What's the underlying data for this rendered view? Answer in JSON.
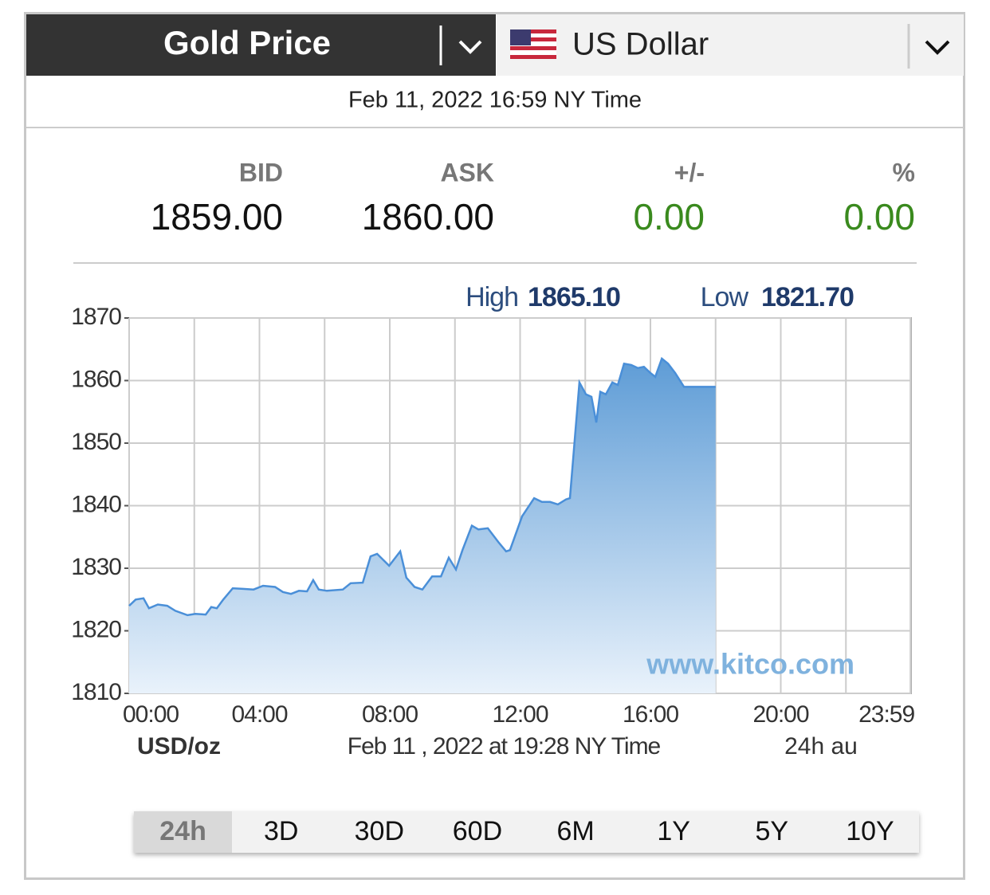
{
  "header": {
    "title": "Gold Price",
    "currency": "US Dollar"
  },
  "timestamp": "Feb 11, 2022 16:59 NY Time",
  "quote": {
    "labels": [
      "BID",
      "ASK",
      "+/-",
      "%"
    ],
    "values": [
      "1859.00",
      "1860.00",
      "0.00",
      "0.00"
    ]
  },
  "chart_data": {
    "type": "area",
    "high_label": "High",
    "high": "1865.10",
    "low_label": "Low",
    "low": "1821.70",
    "unit": "USD/oz",
    "updated": "Feb 11 , 2022 at 19:28 NY Time",
    "range_note": "24h au",
    "watermark": "www.kitco.com",
    "x": [
      0,
      0.2,
      0.44,
      0.61,
      0.88,
      1.17,
      1.42,
      1.79,
      2.03,
      2.35,
      2.52,
      2.69,
      2.89,
      3.18,
      3.5,
      3.82,
      4.11,
      4.48,
      4.72,
      4.97,
      5.21,
      5.46,
      5.65,
      5.82,
      6.07,
      6.56,
      6.8,
      7.17,
      7.41,
      7.61,
      7.98,
      8.32,
      8.51,
      8.76,
      9.0,
      9.3,
      9.57,
      9.81,
      10.03,
      10.23,
      10.52,
      10.72,
      11.01,
      11.33,
      11.57,
      11.69,
      12.06,
      12.43,
      12.67,
      12.92,
      13.16,
      13.41,
      13.53,
      13.82,
      14.02,
      14.19,
      14.34,
      14.46,
      14.63,
      14.83,
      15.0,
      15.19,
      15.41,
      15.61,
      15.8,
      15.98,
      16.15,
      16.35,
      16.54,
      16.76,
      17.03,
      18.0
    ],
    "values": [
      1824.0,
      1825.0,
      1825.2,
      1823.6,
      1824.2,
      1824.0,
      1823.2,
      1822.5,
      1822.7,
      1822.6,
      1823.8,
      1823.6,
      1825.0,
      1826.8,
      1826.7,
      1826.6,
      1827.2,
      1827.0,
      1826.2,
      1825.9,
      1826.4,
      1826.3,
      1828.1,
      1826.6,
      1826.4,
      1826.6,
      1827.6,
      1827.7,
      1831.9,
      1832.3,
      1830.4,
      1832.7,
      1828.5,
      1827.0,
      1826.6,
      1828.7,
      1828.7,
      1831.7,
      1829.8,
      1832.9,
      1836.8,
      1836.2,
      1836.4,
      1834.2,
      1832.7,
      1832.9,
      1838.3,
      1841.2,
      1840.6,
      1840.6,
      1840.2,
      1841.0,
      1841.2,
      1859.7,
      1857.8,
      1857.4,
      1853.3,
      1858.2,
      1857.8,
      1859.7,
      1859.3,
      1862.7,
      1862.5,
      1862.0,
      1862.2,
      1861.3,
      1860.6,
      1863.5,
      1862.7,
      1861.2,
      1859.0,
      1859.0
    ],
    "color": "#4a8fd8",
    "xlim": [
      0,
      24
    ],
    "ylim": [
      1810,
      1870
    ],
    "yticks": [
      1810,
      1820,
      1830,
      1840,
      1850,
      1860,
      1870
    ],
    "xticks": [
      {
        "value": 0,
        "label": "00:00"
      },
      {
        "value": 4,
        "label": "04:00"
      },
      {
        "value": 8,
        "label": "08:00"
      },
      {
        "value": 12,
        "label": "12:00"
      },
      {
        "value": 16,
        "label": "16:00"
      },
      {
        "value": 20,
        "label": "20:00"
      },
      {
        "value": 23.98,
        "label": "23:59"
      }
    ],
    "xgrid": [
      2,
      6,
      10,
      14,
      18,
      22
    ],
    "grid": true
  },
  "ranges": {
    "options": [
      "24h",
      "3D",
      "30D",
      "60D",
      "6M",
      "1Y",
      "5Y",
      "10Y"
    ],
    "active": 0
  }
}
